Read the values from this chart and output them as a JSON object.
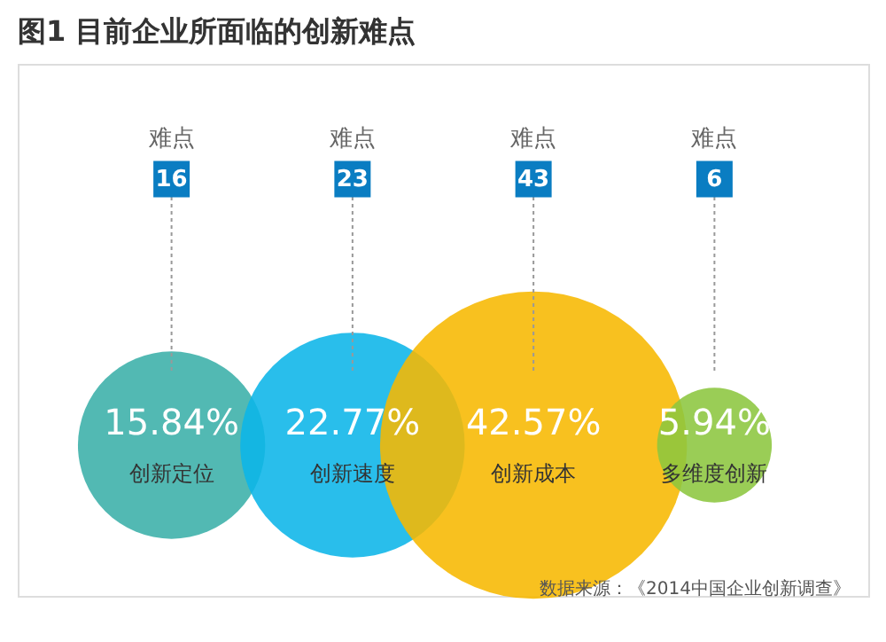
{
  "chart_data": {
    "type": "other",
    "title": "图1  目前企业所面临的创新难点",
    "categories": [
      "创新定位",
      "创新速度",
      "创新成本",
      "多维度创新"
    ],
    "values": [
      15.84,
      22.77,
      42.57,
      5.94
    ],
    "value_labels": [
      "15.84%",
      "22.77%",
      "42.57%",
      "5.94%"
    ],
    "colors": [
      "#3aafa9",
      "#0bb5e8",
      "#f7b800",
      "#8cc63f"
    ],
    "annotations": [
      {
        "text": "难点",
        "x": "创新定位"
      },
      {
        "text": "16",
        "x": "创新定位"
      },
      {
        "text": "难点",
        "x": "创新速度"
      },
      {
        "text": "23",
        "x": "创新速度"
      },
      {
        "text": "难点",
        "x": "创新成本"
      },
      {
        "text": "43",
        "x": "创新成本"
      },
      {
        "text": "难点",
        "x": "多维度创新"
      },
      {
        "text": "6",
        "x": "多维度创新"
      },
      "数据来源：《2014中国企业创新调查》"
    ]
  }
}
